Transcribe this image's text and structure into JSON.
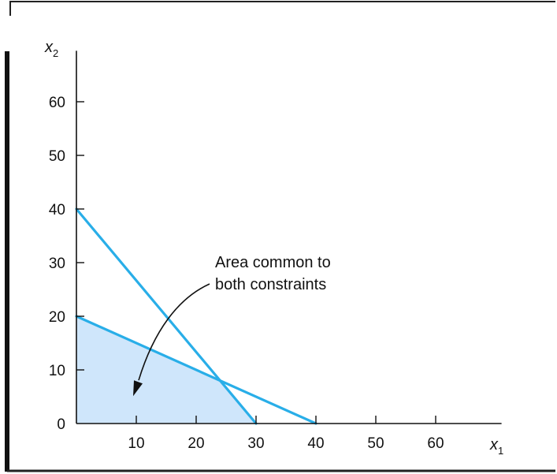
{
  "chart_data": {
    "type": "line",
    "xlabel": "x",
    "xlabel_sub": "1",
    "ylabel": "x",
    "ylabel_sub": "2",
    "xlim": [
      0,
      70
    ],
    "ylim": [
      0,
      65
    ],
    "xticks": [
      10,
      20,
      30,
      40,
      50,
      60
    ],
    "yticks": [
      0,
      10,
      20,
      30,
      40,
      50,
      60
    ],
    "grid": false,
    "line_color": "#29aee8",
    "fill_color": "#cfe6fb",
    "series": [
      {
        "points": [
          [
            0,
            40
          ],
          [
            30,
            0
          ]
        ]
      },
      {
        "points": [
          [
            0,
            20
          ],
          [
            40,
            0
          ]
        ]
      }
    ],
    "feasible_region": [
      [
        0,
        0
      ],
      [
        0,
        20
      ],
      [
        24,
        8
      ],
      [
        30,
        0
      ]
    ],
    "annotation": {
      "lines": [
        "Area common to",
        "both constraints"
      ],
      "arrow_target": [
        10,
        6
      ]
    }
  }
}
